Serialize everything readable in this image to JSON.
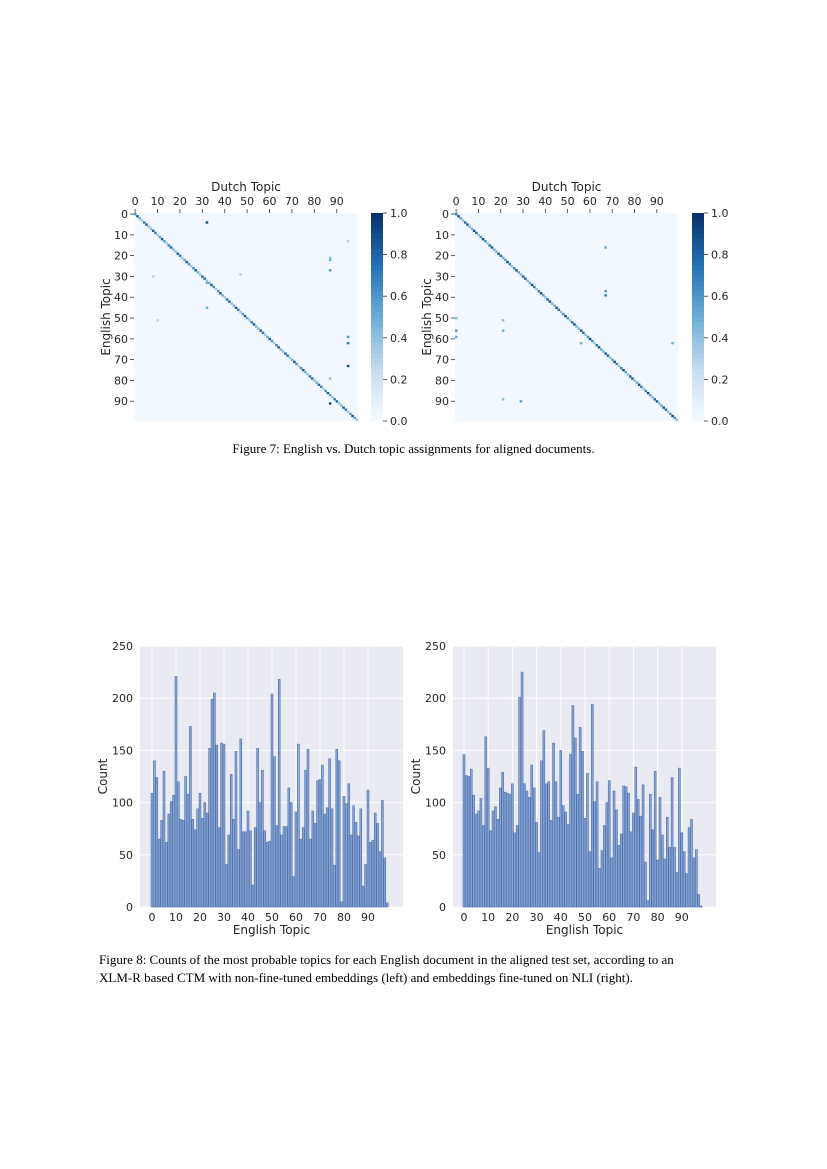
{
  "figure7": {
    "caption": "Figure 7: English vs. Dutch topic assignments for aligned documents."
  },
  "figure8": {
    "caption_line1": "Figure 8: Counts of the most probable topics for each English document in the aligned test set, according to an",
    "caption_line2": "XLM-R based CTM with non-fine-tuned embeddings (left) and embeddings fine-tuned on NLI (right)."
  },
  "chart_data": [
    {
      "type": "heatmap",
      "xlabel": "Dutch Topic",
      "ylabel": "English Topic",
      "xticks": [
        "0",
        "10",
        "20",
        "30",
        "40",
        "50",
        "60",
        "70",
        "80",
        "90"
      ],
      "yticks": [
        "0",
        "10",
        "20",
        "30",
        "40",
        "50",
        "60",
        "70",
        "80",
        "90"
      ],
      "colorbar_ticks": [
        "0.0",
        "0.2",
        "0.4",
        "0.6",
        "0.8",
        "1.0"
      ],
      "colorbar_range": [
        0,
        1
      ],
      "colormap": "Blues",
      "grid_size": 100,
      "diagonal_value": 0.6,
      "off_diagonal_cells": [
        [
          4,
          32,
          0.9
        ],
        [
          22,
          87,
          0.5
        ],
        [
          21,
          87,
          0.4
        ],
        [
          27,
          87,
          0.6
        ],
        [
          33,
          32,
          0.5
        ],
        [
          45,
          32,
          0.5
        ],
        [
          59,
          95,
          0.6
        ],
        [
          62,
          95,
          0.7
        ],
        [
          73,
          95,
          0.9
        ],
        [
          91,
          87,
          0.9
        ],
        [
          13,
          95,
          0.3
        ],
        [
          29,
          47,
          0.3
        ],
        [
          51,
          10,
          0.3
        ],
        [
          30,
          8,
          0.3
        ],
        [
          79,
          87,
          0.4
        ]
      ]
    },
    {
      "type": "heatmap",
      "xlabel": "Dutch Topic",
      "ylabel": "English Topic",
      "xticks": [
        "0",
        "10",
        "20",
        "30",
        "40",
        "50",
        "60",
        "70",
        "80",
        "90"
      ],
      "yticks": [
        "0",
        "10",
        "20",
        "30",
        "40",
        "50",
        "60",
        "70",
        "80",
        "90"
      ],
      "colorbar_ticks": [
        "0.0",
        "0.2",
        "0.4",
        "0.6",
        "0.8",
        "1.0"
      ],
      "colorbar_range": [
        0,
        1
      ],
      "colormap": "Blues",
      "grid_size": 100,
      "diagonal_value": 0.65,
      "off_diagonal_cells": [
        [
          16,
          67,
          0.5
        ],
        [
          37,
          67,
          0.6
        ],
        [
          39,
          67,
          0.7
        ],
        [
          50,
          0,
          0.4
        ],
        [
          56,
          0,
          0.6
        ],
        [
          59,
          0,
          0.5
        ],
        [
          51,
          21,
          0.4
        ],
        [
          56,
          21,
          0.5
        ],
        [
          89,
          21,
          0.4
        ],
        [
          90,
          29,
          0.6
        ],
        [
          62,
          97,
          0.5
        ],
        [
          62,
          56,
          0.5
        ],
        [
          21,
          21,
          0.5
        ]
      ]
    },
    {
      "type": "bar",
      "xlabel": "English Topic",
      "ylabel": "Count",
      "ylim": [
        0,
        250
      ],
      "xticks": [
        "0",
        "10",
        "20",
        "30",
        "40",
        "50",
        "60",
        "70",
        "80",
        "90"
      ],
      "yticks": [
        "0",
        "50",
        "100",
        "150",
        "200",
        "250"
      ],
      "grid": true,
      "bar_color": "#4c72b0",
      "values": [
        109,
        140,
        124,
        65,
        83,
        130,
        62,
        89,
        101,
        107,
        221,
        120,
        84,
        83,
        125,
        108,
        173,
        84,
        74,
        94,
        109,
        85,
        100,
        90,
        152,
        199,
        205,
        155,
        76,
        157,
        156,
        41,
        69,
        127,
        84,
        149,
        55,
        161,
        72,
        72,
        92,
        73,
        21,
        76,
        152,
        100,
        131,
        73,
        62,
        63,
        204,
        144,
        78,
        218,
        69,
        77,
        77,
        114,
        100,
        29,
        91,
        156,
        65,
        76,
        131,
        151,
        65,
        92,
        80,
        121,
        122,
        136,
        89,
        95,
        142,
        94,
        40,
        151,
        140,
        5,
        106,
        99,
        118,
        69,
        97,
        81,
        68,
        94,
        20,
        41,
        112,
        62,
        64,
        90,
        80,
        53,
        102,
        47,
        4,
        0
      ]
    },
    {
      "type": "bar",
      "xlabel": "English Topic",
      "ylabel": "Count",
      "ylim": [
        0,
        250
      ],
      "xticks": [
        "0",
        "10",
        "20",
        "30",
        "40",
        "50",
        "60",
        "70",
        "80",
        "90"
      ],
      "yticks": [
        "0",
        "50",
        "100",
        "150",
        "200",
        "250"
      ],
      "grid": true,
      "bar_color": "#4c72b0",
      "values": [
        146,
        126,
        125,
        132,
        107,
        89,
        92,
        104,
        78,
        163,
        133,
        73,
        92,
        96,
        84,
        114,
        129,
        110,
        109,
        108,
        118,
        71,
        78,
        201,
        225,
        118,
        111,
        105,
        136,
        114,
        81,
        52,
        140,
        169,
        118,
        120,
        83,
        157,
        120,
        86,
        150,
        97,
        91,
        79,
        146,
        193,
        162,
        108,
        172,
        149,
        85,
        128,
        53,
        194,
        101,
        120,
        37,
        54,
        78,
        100,
        121,
        47,
        111,
        93,
        59,
        70,
        116,
        115,
        109,
        72,
        90,
        134,
        103,
        87,
        117,
        43,
        6,
        108,
        74,
        130,
        45,
        105,
        69,
        46,
        86,
        57,
        124,
        57,
        33,
        133,
        71,
        53,
        32,
        76,
        84,
        47,
        55,
        12,
        1,
        0
      ]
    }
  ]
}
